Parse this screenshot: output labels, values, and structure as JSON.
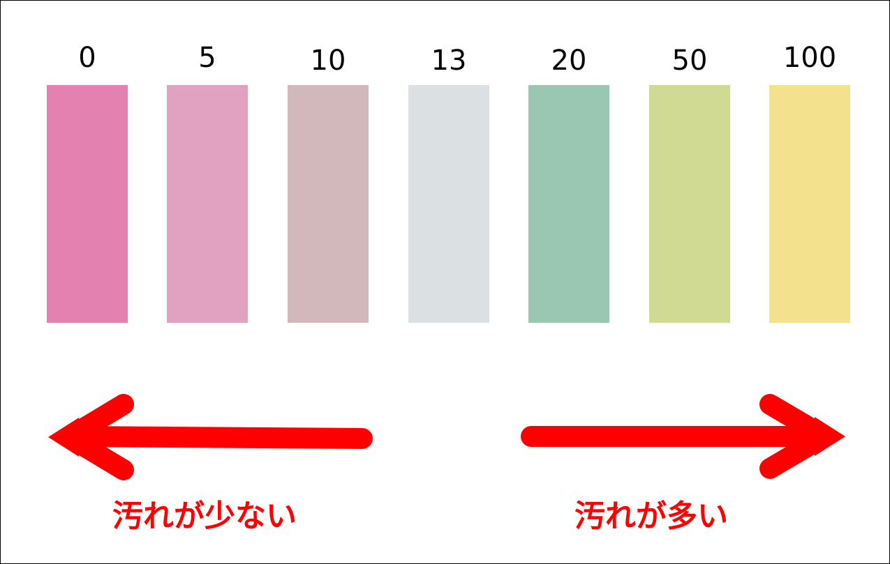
{
  "scale": {
    "swatches": [
      {
        "label": "0",
        "color": "#e382b0"
      },
      {
        "label": "5",
        "color": "#e1a1c1"
      },
      {
        "label": "10",
        "color": "#d2b7bb"
      },
      {
        "label": "13",
        "color": "#dbe0e3"
      },
      {
        "label": "20",
        "color": "#99c7b2"
      },
      {
        "label": "50",
        "color": "#d0da93"
      },
      {
        "label": "100",
        "color": "#f3e18d"
      }
    ]
  },
  "arrows": {
    "color": "#ff0000",
    "left_caption": "汚れが少ない",
    "right_caption": "汚れが多い"
  }
}
